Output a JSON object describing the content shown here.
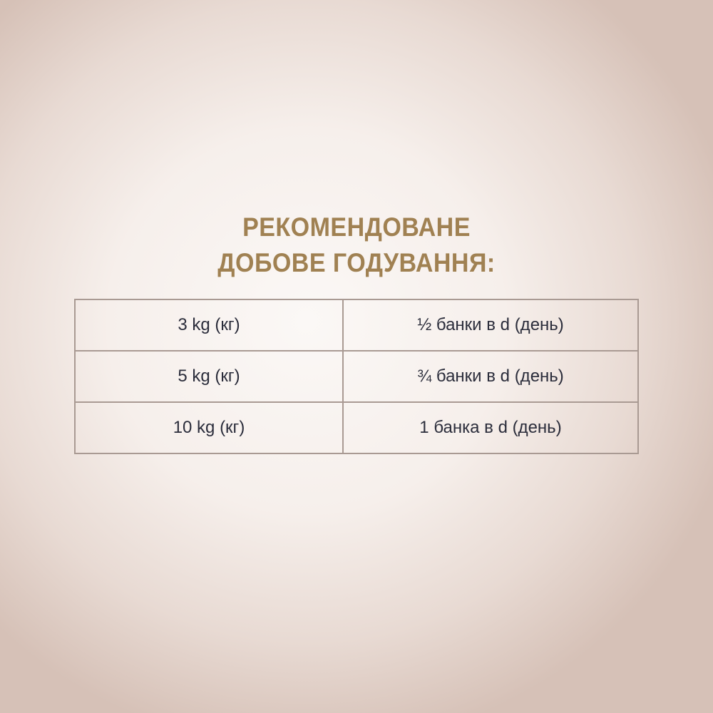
{
  "title": {
    "line1": "РЕКОМЕНДОВАНЕ",
    "line2": "ДОБОВЕ ГОДУВАННЯ:"
  },
  "colors": {
    "title": "#a08152",
    "text": "#2b2d3b",
    "border": "#a99a93"
  },
  "table": {
    "rows": [
      {
        "weight": "3 kg (кг)",
        "amount": "½ банки в d (день)"
      },
      {
        "weight": "5 kg (кг)",
        "amount": "¾ банки в d (день)"
      },
      {
        "weight": "10 kg (кг)",
        "amount": "1 банка в d (день)"
      }
    ]
  }
}
